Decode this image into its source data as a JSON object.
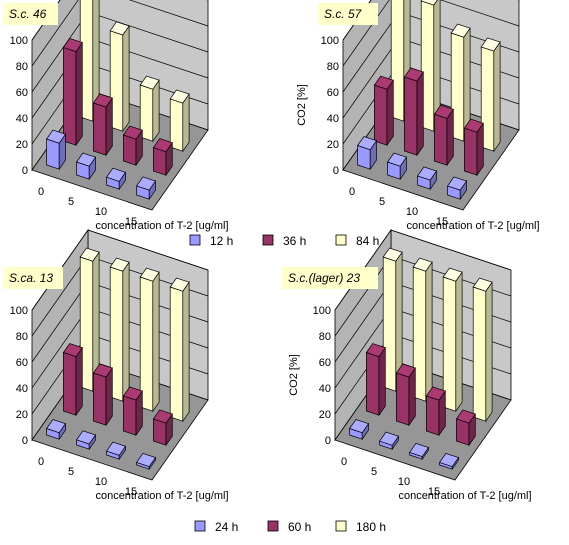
{
  "legends": [
    {
      "id": "top",
      "items": [
        "12 h",
        "36 h",
        "84 h"
      ]
    },
    {
      "id": "bottom",
      "items": [
        "24 h",
        "60 h",
        "180 h"
      ]
    }
  ],
  "colors": {
    "series": [
      "#9999ff",
      "#993366",
      "#ffffcc"
    ],
    "titleBox": "#ffffcc",
    "wallBack": "#c8c8c8",
    "wallSide": "#b4b4b4",
    "floor": "#969696"
  },
  "chart_data": [
    {
      "type": "bar",
      "title": "S.c. 46",
      "xlabel": "concentration of T-2 [ug/ml]",
      "ylabel": "",
      "categories": [
        "0",
        "5",
        "10",
        "15"
      ],
      "ylim": [
        0,
        100
      ],
      "yticks": [
        0,
        20,
        40,
        60,
        80,
        100
      ],
      "legend": "top",
      "series": [
        {
          "name": "12 h",
          "values": [
            20,
            10,
            6,
            7
          ]
        },
        {
          "name": "36 h",
          "values": [
            72,
            37,
            20,
            18
          ]
        },
        {
          "name": "84 h",
          "values": [
            100,
            74,
            40,
            37
          ]
        }
      ]
    },
    {
      "type": "bar",
      "title": "S.c. 57",
      "xlabel": "concentration of T-2 [ug/ml]",
      "ylabel": "CO2 [%]",
      "categories": [
        "0",
        "5",
        "10",
        "15"
      ],
      "ylim": [
        0,
        100
      ],
      "yticks": [
        0,
        20,
        40,
        60,
        80,
        100
      ],
      "legend": "top",
      "series": [
        {
          "name": "12 h",
          "values": [
            15,
            10,
            7,
            7
          ]
        },
        {
          "name": "36 h",
          "values": [
            43,
            57,
            36,
            33
          ]
        },
        {
          "name": "84 h",
          "values": [
            100,
            97,
            80,
            77
          ]
        }
      ]
    },
    {
      "type": "bar",
      "title": "S.ca. 13",
      "xlabel": "concentration of T-2 [ug/ml]",
      "ylabel": "",
      "categories": [
        "0",
        "5",
        "10",
        "15"
      ],
      "ylim": [
        0,
        100
      ],
      "yticks": [
        0,
        20,
        40,
        60,
        80,
        100
      ],
      "legend": "bottom",
      "series": [
        {
          "name": "24 h",
          "values": [
            5,
            4,
            3,
            2
          ]
        },
        {
          "name": "60 h",
          "values": [
            45,
            37,
            27,
            17
          ]
        },
        {
          "name": "180 h",
          "values": [
            100,
            100,
            100,
            100
          ]
        }
      ]
    },
    {
      "type": "bar",
      "title": "S.c.(lager) 23",
      "xlabel": "concentration of T-2 [ug/ml]",
      "ylabel": "CO2 [%]",
      "categories": [
        "0",
        "5",
        "10",
        "15"
      ],
      "ylim": [
        0,
        100
      ],
      "yticks": [
        0,
        20,
        40,
        60,
        80,
        100
      ],
      "legend": "bottom",
      "series": [
        {
          "name": "24 h",
          "values": [
            5,
            3,
            2,
            2
          ]
        },
        {
          "name": "60 h",
          "values": [
            45,
            37,
            27,
            17
          ]
        },
        {
          "name": "180 h",
          "values": [
            100,
            100,
            100,
            100
          ]
        }
      ]
    }
  ]
}
